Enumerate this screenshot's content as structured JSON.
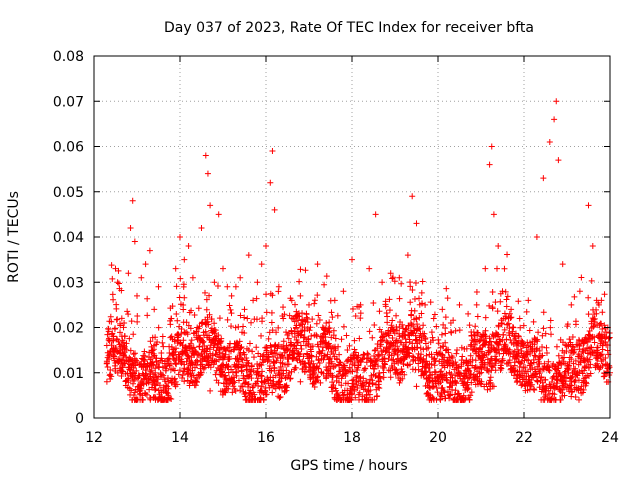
{
  "chart_data": {
    "type": "scatter",
    "title": "Day 037 of 2023, Rate Of TEC Index for receiver bfta",
    "xlabel": "GPS time / hours",
    "ylabel": "ROTI / TECUs",
    "xlim": [
      12,
      24
    ],
    "ylim": [
      0,
      0.08
    ],
    "x_ticks": [
      12,
      14,
      16,
      18,
      20,
      22,
      24
    ],
    "x_tick_labels": [
      "12",
      "14",
      "16",
      "18",
      "20",
      "22",
      "24"
    ],
    "y_ticks": [
      0,
      0.01,
      0.02,
      0.03,
      0.04,
      0.05,
      0.06,
      0.07,
      0.08
    ],
    "y_tick_labels": [
      "0",
      "0.01",
      "0.02",
      "0.03",
      "0.04",
      "0.05",
      "0.06",
      "0.07",
      "0.08"
    ],
    "grid": true,
    "marker": "plus",
    "color": "#ff0000",
    "series": [
      {
        "values": [
          [
            12.35,
            0.013
          ],
          [
            12.45,
            0.018
          ],
          [
            12.5,
            0.033
          ],
          [
            12.55,
            0.03
          ],
          [
            12.6,
            0.011
          ],
          [
            12.7,
            0.021
          ],
          [
            12.8,
            0.032
          ],
          [
            12.85,
            0.042
          ],
          [
            12.9,
            0.048
          ],
          [
            12.95,
            0.039
          ],
          [
            13.0,
            0.027
          ],
          [
            13.1,
            0.031
          ],
          [
            13.2,
            0.034
          ],
          [
            13.3,
            0.037
          ],
          [
            13.4,
            0.024
          ],
          [
            13.5,
            0.029
          ],
          [
            13.6,
            0.018
          ],
          [
            13.7,
            0.012
          ],
          [
            13.8,
            0.022
          ],
          [
            13.9,
            0.033
          ],
          [
            14.0,
            0.04
          ],
          [
            14.1,
            0.035
          ],
          [
            14.2,
            0.038
          ],
          [
            14.3,
            0.031
          ],
          [
            14.4,
            0.02
          ],
          [
            14.5,
            0.042
          ],
          [
            14.6,
            0.058
          ],
          [
            14.65,
            0.054
          ],
          [
            14.7,
            0.047
          ],
          [
            14.8,
            0.03
          ],
          [
            14.9,
            0.045
          ],
          [
            15.0,
            0.033
          ],
          [
            15.1,
            0.029
          ],
          [
            15.2,
            0.027
          ],
          [
            15.3,
            0.029
          ],
          [
            15.4,
            0.031
          ],
          [
            15.5,
            0.024
          ],
          [
            15.6,
            0.036
          ],
          [
            15.7,
            0.026
          ],
          [
            15.8,
            0.03
          ],
          [
            15.9,
            0.034
          ],
          [
            16.0,
            0.038
          ],
          [
            16.1,
            0.052
          ],
          [
            16.15,
            0.059
          ],
          [
            16.2,
            0.046
          ],
          [
            16.3,
            0.029
          ],
          [
            16.4,
            0.022
          ],
          [
            16.6,
            0.026
          ],
          [
            16.8,
            0.027
          ],
          [
            17.0,
            0.025
          ],
          [
            17.2,
            0.034
          ],
          [
            17.4,
            0.021
          ],
          [
            17.6,
            0.026
          ],
          [
            17.8,
            0.028
          ],
          [
            18.0,
            0.035
          ],
          [
            18.2,
            0.025
          ],
          [
            18.4,
            0.033
          ],
          [
            18.55,
            0.045
          ],
          [
            18.7,
            0.03
          ],
          [
            18.9,
            0.032
          ],
          [
            19.1,
            0.031
          ],
          [
            19.3,
            0.036
          ],
          [
            19.4,
            0.049
          ],
          [
            19.5,
            0.043
          ],
          [
            19.7,
            0.025
          ],
          [
            19.9,
            0.022
          ],
          [
            20.1,
            0.024
          ],
          [
            20.3,
            0.021
          ],
          [
            20.5,
            0.025
          ],
          [
            20.7,
            0.023
          ],
          [
            20.9,
            0.025
          ],
          [
            21.1,
            0.033
          ],
          [
            21.2,
            0.056
          ],
          [
            21.25,
            0.06
          ],
          [
            21.3,
            0.045
          ],
          [
            21.4,
            0.038
          ],
          [
            21.5,
            0.028
          ],
          [
            21.7,
            0.024
          ],
          [
            21.9,
            0.022
          ],
          [
            22.1,
            0.026
          ],
          [
            22.3,
            0.04
          ],
          [
            22.45,
            0.053
          ],
          [
            22.6,
            0.061
          ],
          [
            22.7,
            0.066
          ],
          [
            22.75,
            0.07
          ],
          [
            22.8,
            0.057
          ],
          [
            22.9,
            0.034
          ],
          [
            23.1,
            0.025
          ],
          [
            23.3,
            0.028
          ],
          [
            23.5,
            0.047
          ],
          [
            23.6,
            0.038
          ],
          [
            23.8,
            0.026
          ],
          [
            23.95,
            0.02
          ],
          [
            12.3,
            0.008
          ],
          [
            12.6,
            0.015
          ],
          [
            12.9,
            0.009
          ],
          [
            13.1,
            0.012
          ],
          [
            13.4,
            0.016
          ],
          [
            13.7,
            0.007
          ],
          [
            14.1,
            0.011
          ],
          [
            14.4,
            0.014
          ],
          [
            14.7,
            0.006
          ],
          [
            15.0,
            0.013
          ],
          [
            15.3,
            0.01
          ],
          [
            15.6,
            0.015
          ],
          [
            15.9,
            0.007
          ],
          [
            16.2,
            0.011
          ],
          [
            16.5,
            0.013
          ],
          [
            16.8,
            0.008
          ],
          [
            17.1,
            0.012
          ],
          [
            17.4,
            0.009
          ],
          [
            17.7,
            0.014
          ],
          [
            18.0,
            0.007
          ],
          [
            18.3,
            0.011
          ],
          [
            18.6,
            0.013
          ],
          [
            18.9,
            0.009
          ],
          [
            19.2,
            0.015
          ],
          [
            19.5,
            0.007
          ],
          [
            19.8,
            0.012
          ],
          [
            20.1,
            0.014
          ],
          [
            20.4,
            0.008
          ],
          [
            20.7,
            0.011
          ],
          [
            21.0,
            0.013
          ],
          [
            21.3,
            0.007
          ],
          [
            21.6,
            0.012
          ],
          [
            21.9,
            0.009
          ],
          [
            22.2,
            0.015
          ],
          [
            22.5,
            0.006
          ],
          [
            22.8,
            0.011
          ],
          [
            23.1,
            0.013
          ],
          [
            23.4,
            0.008
          ],
          [
            23.7,
            0.012
          ],
          [
            24.0,
            0.01
          ]
        ]
      }
    ],
    "dense_band": {
      "x_start": 12.3,
      "x_end": 24.0,
      "x_step": 0.012,
      "y_range": [
        0.004,
        0.03
      ]
    }
  }
}
